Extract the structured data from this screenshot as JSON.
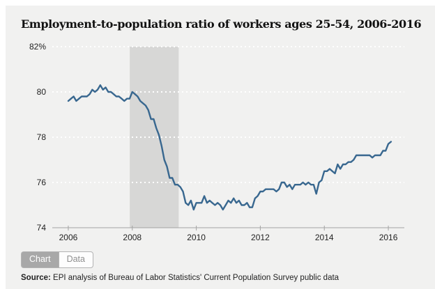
{
  "header": {
    "title": "Employment-to-population ratio of workers ages 25-54, 2006-2016"
  },
  "tabs": {
    "chart_label": "Chart",
    "data_label": "Data",
    "active_tab": "Chart"
  },
  "source": {
    "prefix": "Source:",
    "text": " EPI analysis of Bureau of Labor Statistics' Current Population Survey public data"
  },
  "chart_data": {
    "type": "line",
    "title": "Employment-to-population ratio of workers ages 25-54, 2006-2016",
    "xlabel": "",
    "ylabel": "",
    "ylim": [
      74,
      82
    ],
    "xlim": [
      2005.5,
      2016.5
    ],
    "ytick_values": [
      82,
      80,
      78,
      76,
      74
    ],
    "ytick_labels": [
      "82%",
      "80",
      "78",
      "76",
      "74"
    ],
    "xtick_values": [
      2006,
      2008,
      2010,
      2012,
      2014,
      2016
    ],
    "xtick_labels": [
      "2006",
      "2008",
      "2010",
      "2012",
      "2014",
      "2016"
    ],
    "grid": "dotted-white-horizontal",
    "legend": "none",
    "recession_band": {
      "x0": 2007.92,
      "x1": 2009.45
    },
    "colors": {
      "line": "#38678f",
      "band": "#d7d7d6",
      "grid": "#ffffff",
      "axis": "#a3a3a3",
      "panel": "#f1f1f0"
    },
    "x_start": 2006.0,
    "x_step": 0.0833333,
    "series_name": "Employment-to-population ratio, ages 25-54 (monthly)",
    "values": [
      79.6,
      79.7,
      79.8,
      79.6,
      79.7,
      79.8,
      79.8,
      79.8,
      79.9,
      80.1,
      80.0,
      80.1,
      80.3,
      80.1,
      80.2,
      80.0,
      80.0,
      79.9,
      79.8,
      79.8,
      79.7,
      79.6,
      79.7,
      79.7,
      80.0,
      79.9,
      79.8,
      79.6,
      79.5,
      79.4,
      79.2,
      78.8,
      78.8,
      78.4,
      78.1,
      77.6,
      77.0,
      76.7,
      76.2,
      76.2,
      75.9,
      75.9,
      75.8,
      75.6,
      75.1,
      75.0,
      75.2,
      74.8,
      75.1,
      75.1,
      75.1,
      75.4,
      75.1,
      75.2,
      75.1,
      75.0,
      75.1,
      75.0,
      74.8,
      75.0,
      75.2,
      75.1,
      75.3,
      75.1,
      75.2,
      75.0,
      75.0,
      75.1,
      74.9,
      74.9,
      75.3,
      75.4,
      75.6,
      75.6,
      75.7,
      75.7,
      75.7,
      75.7,
      75.6,
      75.7,
      76.0,
      76.0,
      75.8,
      75.9,
      75.7,
      75.9,
      75.9,
      75.9,
      76.0,
      75.9,
      76.0,
      75.9,
      75.9,
      75.5,
      76.0,
      76.1,
      76.5,
      76.5,
      76.6,
      76.5,
      76.4,
      76.8,
      76.6,
      76.8,
      76.8,
      76.9,
      76.9,
      77.0,
      77.2,
      77.2,
      77.2,
      77.2,
      77.2,
      77.2,
      77.1,
      77.2,
      77.2,
      77.2,
      77.4,
      77.4,
      77.7,
      77.8
    ]
  }
}
